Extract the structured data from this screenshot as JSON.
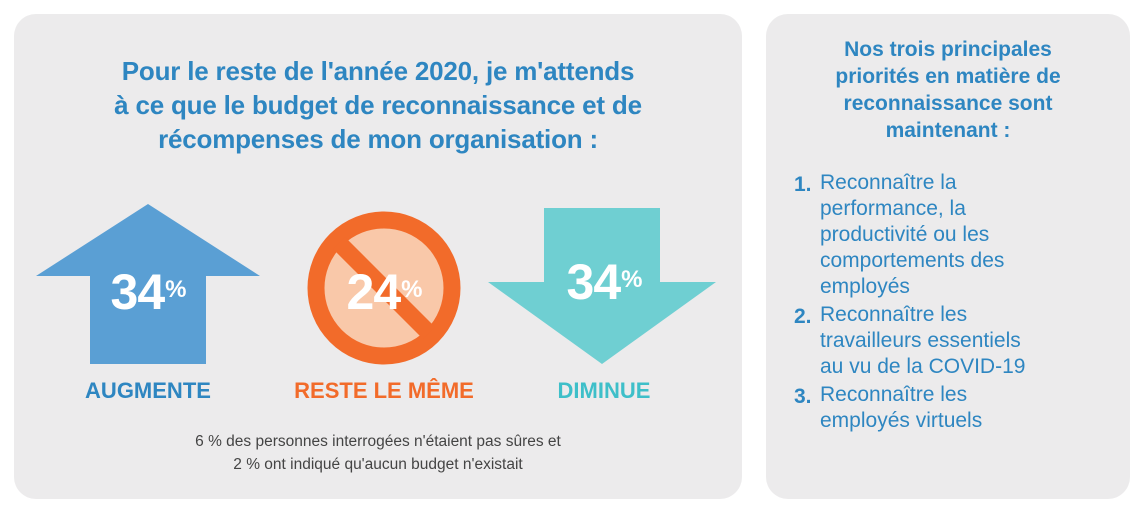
{
  "left": {
    "headline_lines": [
      "Pour le reste de l'année 2020, je m'attends",
      "à ce que le budget de reconnaissance et de",
      "récompenses de mon organisation :"
    ],
    "stats": [
      {
        "value": "34",
        "unit": "%",
        "label": "AUGMENTE",
        "icon": "arrow-up-icon",
        "color": "#5a9fd4"
      },
      {
        "value": "24",
        "unit": "%",
        "label": "RESTE LE MÊME",
        "icon": "no-change-icon",
        "color": "#f26b2a"
      },
      {
        "value": "34",
        "unit": "%",
        "label": "DIMINUE",
        "icon": "arrow-down-icon",
        "color": "#6fcfd2"
      }
    ],
    "footnote_lines": [
      "6 % des personnes interrogées n'étaient pas sûres et",
      "2 % ont indiqué qu'aucun budget n'existait"
    ]
  },
  "right": {
    "title_lines": [
      "Nos trois principales",
      "priorités en matière de",
      "reconnaissance sont",
      "maintenant :"
    ],
    "priorities": [
      {
        "number": "1.",
        "lines": [
          "Reconnaître la",
          "performance, la",
          "productivité ou les",
          "comportements des",
          "employés"
        ]
      },
      {
        "number": "2.",
        "lines": [
          "Reconnaître les",
          "travailleurs essentiels",
          "au vu de la COVID-19"
        ]
      },
      {
        "number": "3.",
        "lines": [
          "Reconnaître les",
          "employés virtuels"
        ]
      }
    ]
  },
  "colors": {
    "blue_text": "#2e86c1",
    "orange": "#f26b2a",
    "teal": "#3ebfc9",
    "panel_bg": "#ecebec"
  }
}
